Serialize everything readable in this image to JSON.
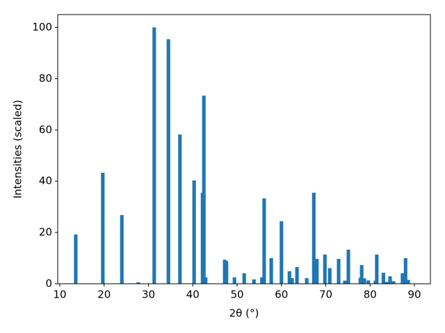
{
  "chart_data": {
    "type": "bar",
    "xlabel": "2θ (°)",
    "ylabel": "Intensities (scaled)",
    "x": [
      13.6,
      19.7,
      24.0,
      27.7,
      31.3,
      34.5,
      37.1,
      40.3,
      42.2,
      42.5,
      42.9,
      47.2,
      47.6,
      49.4,
      51.6,
      53.8,
      55.6,
      56.1,
      57.7,
      60.0,
      61.8,
      62.4,
      63.5,
      65.7,
      67.3,
      68.0,
      69.8,
      70.9,
      72.9,
      74.3,
      75.1,
      77.8,
      78.1,
      78.7,
      79.6,
      81.2,
      81.5,
      83.0,
      83.7,
      84.5,
      85.3,
      87.3,
      88.0,
      88.6
    ],
    "values": [
      19.2,
      43.3,
      26.8,
      0.6,
      100,
      95.4,
      58.2,
      40.3,
      35.5,
      73.4,
      2.5,
      9.4,
      8.9,
      2.5,
      4.1,
      1.7,
      2.5,
      33.3,
      10.0,
      24.4,
      4.9,
      2.2,
      6.5,
      2.2,
      35.5,
      9.7,
      11.4,
      6.1,
      9.7,
      1.2,
      13.3,
      2.3,
      7.3,
      2.1,
      1.3,
      1.2,
      11.4,
      4.3,
      0.7,
      2.9,
      1.0,
      4.1,
      10.0,
      1.5
    ],
    "color": "#1f77b4",
    "xlim": [
      9.53,
      93.6
    ],
    "xticks": [
      10,
      20,
      30,
      40,
      50,
      60,
      70,
      80,
      90
    ],
    "ylim": [
      0,
      105
    ],
    "yticks": [
      0,
      20,
      40,
      60,
      80,
      100
    ],
    "grid": false
  }
}
